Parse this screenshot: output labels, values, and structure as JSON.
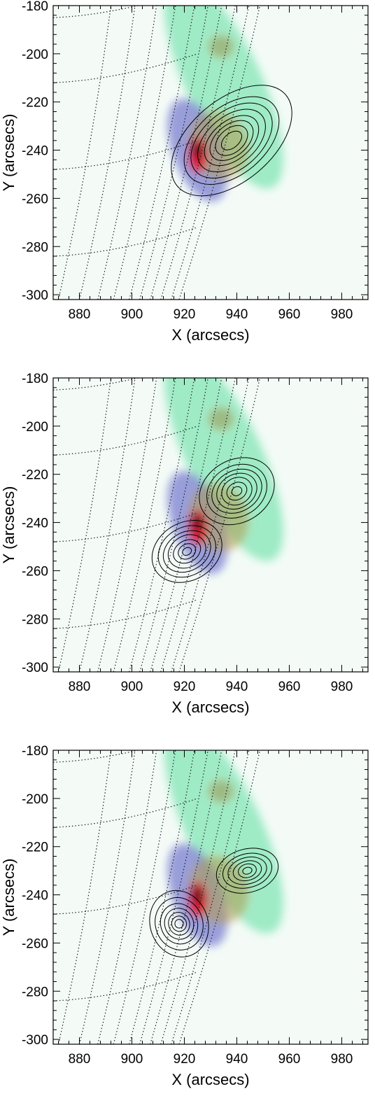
{
  "chart_data": [
    {
      "type": "heatmap",
      "panel": 1,
      "title": "",
      "xlabel": "X (arcsecs)",
      "ylabel": "Y (arcsecs)",
      "xlim": [
        870,
        990
      ],
      "ylim": [
        -302,
        -180
      ],
      "x_ticks": [
        880,
        900,
        920,
        940,
        960,
        980
      ],
      "y_ticks": [
        -180,
        -200,
        -220,
        -240,
        -260,
        -280,
        -300
      ],
      "image_blobs": [
        {
          "x": 935,
          "y": -212,
          "sx": 9,
          "sy": 30,
          "rot": -25,
          "a": 0.45,
          "color": "#35d88a"
        },
        {
          "x": 925,
          "y": -240,
          "sx": 6,
          "sy": 14,
          "rot": -20,
          "a": 0.75,
          "color": "#7a7fd0"
        },
        {
          "x": 933,
          "y": -238,
          "sx": 7,
          "sy": 9,
          "rot": -20,
          "a": 0.55,
          "color": "#b39a4c"
        },
        {
          "x": 925,
          "y": -242,
          "sx": 2.2,
          "sy": 4.5,
          "rot": 0,
          "a": 0.95,
          "color": "#e0102a"
        },
        {
          "x": 925,
          "y": -240,
          "sx": 1,
          "sy": 2.2,
          "rot": 0,
          "a": 1.0,
          "color": "#111111"
        },
        {
          "x": 934,
          "y": -197,
          "sx": 3,
          "sy": 3,
          "rot": 0,
          "a": 0.6,
          "color": "#9c9a5a"
        }
      ],
      "contour_sources": [
        {
          "x": 938,
          "y": -236,
          "levels": [
            {
              "a": 27,
              "b": 17
            },
            {
              "a": 21,
              "b": 14
            },
            {
              "a": 18,
              "b": 12
            },
            {
              "a": 15,
              "b": 10
            },
            {
              "a": 12,
              "b": 8
            },
            {
              "a": 9.5,
              "b": 6.5
            },
            {
              "a": 7,
              "b": 5
            },
            {
              "a": 4.5,
              "b": 3
            }
          ],
          "rot": -40
        }
      ]
    },
    {
      "type": "heatmap",
      "panel": 2,
      "title": "",
      "xlabel": "X (arcsecs)",
      "ylabel": "Y (arcsecs)",
      "xlim": [
        870,
        990
      ],
      "ylim": [
        -302,
        -180
      ],
      "x_ticks": [
        880,
        900,
        920,
        940,
        960,
        980
      ],
      "y_ticks": [
        -180,
        -200,
        -220,
        -240,
        -260,
        -280,
        -300
      ],
      "image_blobs": [
        {
          "x": 935,
          "y": -212,
          "sx": 9,
          "sy": 30,
          "rot": -25,
          "a": 0.45,
          "color": "#35d88a"
        },
        {
          "x": 925,
          "y": -240,
          "sx": 6,
          "sy": 14,
          "rot": -20,
          "a": 0.75,
          "color": "#7a7fd0"
        },
        {
          "x": 933,
          "y": -238,
          "sx": 7,
          "sy": 9,
          "rot": -20,
          "a": 0.55,
          "color": "#b39a4c"
        },
        {
          "x": 925,
          "y": -242,
          "sx": 2.2,
          "sy": 4.5,
          "rot": 0,
          "a": 0.95,
          "color": "#e0102a"
        },
        {
          "x": 925,
          "y": -240,
          "sx": 1,
          "sy": 2.2,
          "rot": 0,
          "a": 1.0,
          "color": "#111111"
        },
        {
          "x": 934,
          "y": -197,
          "sx": 3,
          "sy": 3,
          "rot": 0,
          "a": 0.6,
          "color": "#9c9a5a"
        }
      ],
      "contour_sources": [
        {
          "x": 940,
          "y": -227,
          "levels": [
            {
              "a": 15,
              "b": 13
            },
            {
              "a": 12,
              "b": 10.5
            },
            {
              "a": 10,
              "b": 8.5
            },
            {
              "a": 8,
              "b": 7
            },
            {
              "a": 6,
              "b": 5.5
            },
            {
              "a": 4,
              "b": 3.5
            },
            {
              "a": 2,
              "b": 1.8
            }
          ],
          "rot": -30
        },
        {
          "x": 921,
          "y": -252,
          "levels": [
            {
              "a": 14,
              "b": 12
            },
            {
              "a": 11.5,
              "b": 10
            },
            {
              "a": 9.5,
              "b": 8
            },
            {
              "a": 7.5,
              "b": 6.5
            },
            {
              "a": 5.5,
              "b": 4.5
            },
            {
              "a": 3.5,
              "b": 3
            },
            {
              "a": 1.8,
              "b": 1.5
            }
          ],
          "rot": -30
        }
      ]
    },
    {
      "type": "heatmap",
      "panel": 3,
      "title": "",
      "xlabel": "X (arcsecs)",
      "ylabel": "Y (arcsecs)",
      "xlim": [
        870,
        990
      ],
      "ylim": [
        -302,
        -180
      ],
      "x_ticks": [
        880,
        900,
        920,
        940,
        960,
        980
      ],
      "y_ticks": [
        -180,
        -200,
        -220,
        -240,
        -260,
        -280,
        -300
      ],
      "image_blobs": [
        {
          "x": 935,
          "y": -212,
          "sx": 9,
          "sy": 30,
          "rot": -25,
          "a": 0.45,
          "color": "#35d88a"
        },
        {
          "x": 925,
          "y": -240,
          "sx": 6,
          "sy": 14,
          "rot": -20,
          "a": 0.75,
          "color": "#7a7fd0"
        },
        {
          "x": 933,
          "y": -238,
          "sx": 7,
          "sy": 9,
          "rot": -20,
          "a": 0.55,
          "color": "#b39a4c"
        },
        {
          "x": 925,
          "y": -242,
          "sx": 2.2,
          "sy": 4.5,
          "rot": 0,
          "a": 0.95,
          "color": "#e0102a"
        },
        {
          "x": 925,
          "y": -240,
          "sx": 1,
          "sy": 2.2,
          "rot": 0,
          "a": 1.0,
          "color": "#111111"
        },
        {
          "x": 934,
          "y": -197,
          "sx": 3,
          "sy": 3,
          "rot": 0,
          "a": 0.6,
          "color": "#9c9a5a"
        }
      ],
      "contour_sources": [
        {
          "x": 944,
          "y": -230,
          "levels": [
            {
              "a": 12,
              "b": 9
            },
            {
              "a": 9.5,
              "b": 7
            },
            {
              "a": 7.5,
              "b": 5.5
            },
            {
              "a": 5.5,
              "b": 4
            },
            {
              "a": 3.5,
              "b": 2.8
            },
            {
              "a": 1.8,
              "b": 1.4
            }
          ],
          "rot": -15
        },
        {
          "x": 918,
          "y": -252,
          "levels": [
            {
              "a": 11,
              "b": 14
            },
            {
              "a": 9,
              "b": 11
            },
            {
              "a": 7,
              "b": 8.5
            },
            {
              "a": 5.5,
              "b": 6.5
            },
            {
              "a": 4,
              "b": 4.8
            },
            {
              "a": 2.8,
              "b": 3.2
            },
            {
              "a": 1.6,
              "b": 1.8
            }
          ],
          "rot": -20
        }
      ]
    }
  ]
}
